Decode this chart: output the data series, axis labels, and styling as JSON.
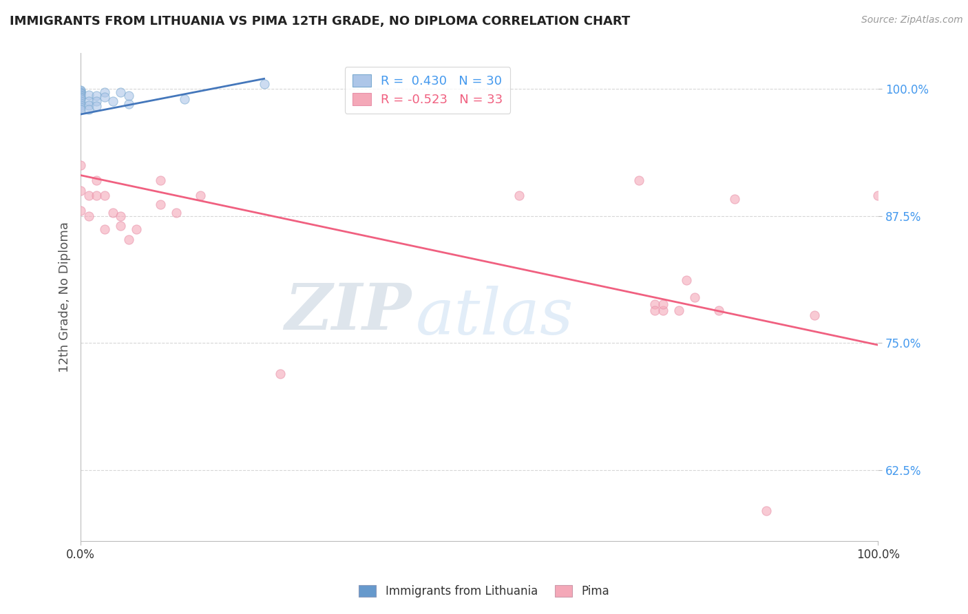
{
  "title": "IMMIGRANTS FROM LITHUANIA VS PIMA 12TH GRADE, NO DIPLOMA CORRELATION CHART",
  "source_text": "Source: ZipAtlas.com",
  "ylabel": "12th Grade, No Diploma",
  "x_min": 0.0,
  "x_max": 1.0,
  "y_min": 0.555,
  "y_max": 1.035,
  "y_ticks": [
    0.625,
    0.75,
    0.875,
    1.0
  ],
  "y_tick_labels": [
    "62.5%",
    "75.0%",
    "87.5%",
    "100.0%"
  ],
  "x_ticks": [
    0.0,
    1.0
  ],
  "x_tick_labels": [
    "0.0%",
    "100.0%"
  ],
  "blue_scatter_x": [
    0.0,
    0.0,
    0.0,
    0.0,
    0.0,
    0.0,
    0.0,
    0.0,
    0.0,
    0.0,
    0.0,
    0.0,
    0.0,
    0.0,
    0.0,
    0.01,
    0.01,
    0.01,
    0.01,
    0.02,
    0.02,
    0.02,
    0.03,
    0.03,
    0.04,
    0.05,
    0.06,
    0.06,
    0.13,
    0.23
  ],
  "blue_scatter_y": [
    0.999,
    0.998,
    0.997,
    0.996,
    0.995,
    0.994,
    0.993,
    0.992,
    0.991,
    0.99,
    0.988,
    0.986,
    0.984,
    0.982,
    0.98,
    0.994,
    0.988,
    0.984,
    0.98,
    0.993,
    0.988,
    0.983,
    0.997,
    0.992,
    0.988,
    0.997,
    0.985,
    0.993,
    0.99,
    1.005
  ],
  "pink_scatter_x": [
    0.0,
    0.0,
    0.0,
    0.01,
    0.01,
    0.02,
    0.02,
    0.03,
    0.03,
    0.04,
    0.05,
    0.05,
    0.06,
    0.07,
    0.1,
    0.1,
    0.12,
    0.15,
    0.25,
    0.55,
    0.7,
    0.72,
    0.72,
    0.73,
    0.73,
    0.75,
    0.76,
    0.77,
    0.8,
    0.82,
    0.86,
    0.92,
    1.0
  ],
  "pink_scatter_y": [
    0.925,
    0.9,
    0.88,
    0.895,
    0.875,
    0.91,
    0.895,
    0.895,
    0.862,
    0.878,
    0.875,
    0.865,
    0.852,
    0.862,
    0.91,
    0.886,
    0.878,
    0.895,
    0.72,
    0.895,
    0.91,
    0.788,
    0.782,
    0.782,
    0.788,
    0.782,
    0.812,
    0.795,
    0.782,
    0.892,
    0.585,
    0.777,
    0.895
  ],
  "blue_line_x": [
    0.0,
    0.23
  ],
  "blue_line_y": [
    0.975,
    1.01
  ],
  "pink_line_x": [
    0.0,
    1.0
  ],
  "pink_line_y": [
    0.915,
    0.748
  ],
  "watermark_zip": "ZIP",
  "watermark_atlas": "atlas",
  "background_color": "#ffffff",
  "grid_color": "#cccccc",
  "scatter_size": 90,
  "blue_fill_color": "#adc6e8",
  "blue_edge_color": "#7aaad0",
  "pink_fill_color": "#f4a8b8",
  "pink_edge_color": "#e890a8",
  "blue_line_color": "#4477bb",
  "pink_line_color": "#f06080",
  "ytick_color": "#4499ee",
  "xtick_color": "#333333",
  "ylabel_color": "#555555",
  "title_color": "#222222",
  "source_color": "#999999",
  "legend_blue_text": "#4499ee",
  "legend_pink_text": "#f06080",
  "legend_blue_r": "R =  0.430",
  "legend_blue_n": "N = 30",
  "legend_pink_r": "R = -0.523",
  "legend_pink_n": "N = 33",
  "bottom_label_blue": "Immigrants from Lithuania",
  "bottom_label_pink": "Pima",
  "bottom_blue_color": "#6699cc",
  "bottom_pink_color": "#f4a8b8"
}
